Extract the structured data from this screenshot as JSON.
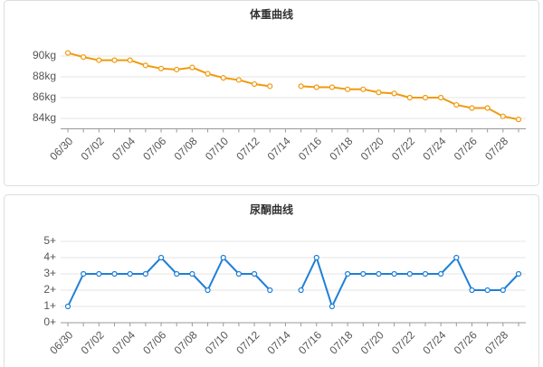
{
  "chart_data": [
    {
      "type": "line",
      "title": "体重曲线",
      "categories": [
        "06/30",
        null,
        "07/02",
        null,
        "07/04",
        null,
        "07/06",
        null,
        "07/08",
        null,
        "07/10",
        null,
        "07/12",
        null,
        "07/14",
        null,
        "07/16",
        null,
        "07/18",
        null,
        "07/20",
        null,
        "07/22",
        null,
        "07/24",
        null,
        "07/26",
        null,
        "07/28",
        null
      ],
      "values": [
        90.3,
        89.9,
        89.6,
        89.6,
        89.6,
        89.1,
        88.8,
        88.7,
        88.9,
        88.3,
        87.9,
        87.7,
        87.3,
        87.1,
        null,
        87.1,
        87.0,
        87.0,
        86.8,
        86.8,
        86.5,
        86.4,
        86.0,
        86.0,
        86.0,
        85.3,
        85.0,
        85.0,
        84.2,
        83.9
      ],
      "color": "#f09a0e",
      "ylim": [
        83,
        91
      ],
      "yticks": [
        {
          "value": 84,
          "label": "84kg"
        },
        {
          "value": 86,
          "label": "86kg"
        },
        {
          "value": 88,
          "label": "88kg"
        },
        {
          "value": 90,
          "label": "90kg"
        }
      ],
      "grid": true
    },
    {
      "type": "line",
      "title": "尿酮曲线",
      "categories": [
        "06/30",
        null,
        "07/02",
        null,
        "07/04",
        null,
        "07/06",
        null,
        "07/08",
        null,
        "07/10",
        null,
        "07/12",
        null,
        "07/14",
        null,
        "07/16",
        null,
        "07/18",
        null,
        "07/20",
        null,
        "07/22",
        null,
        "07/24",
        null,
        "07/26",
        null,
        "07/28",
        null
      ],
      "values": [
        1,
        3,
        3,
        3,
        3,
        3,
        4,
        3,
        3,
        2,
        4,
        3,
        3,
        2,
        null,
        2,
        4,
        1,
        3,
        3,
        3,
        3,
        3,
        3,
        3,
        4,
        2,
        2,
        2,
        3
      ],
      "color": "#1f7fd6",
      "ylim": [
        0,
        5
      ],
      "yticks": [
        {
          "value": 0,
          "label": "0+"
        },
        {
          "value": 1,
          "label": "1+"
        },
        {
          "value": 2,
          "label": "2+"
        },
        {
          "value": 3,
          "label": "3+"
        },
        {
          "value": 4,
          "label": "4+"
        },
        {
          "value": 5,
          "label": "5+"
        }
      ],
      "grid": true
    }
  ]
}
